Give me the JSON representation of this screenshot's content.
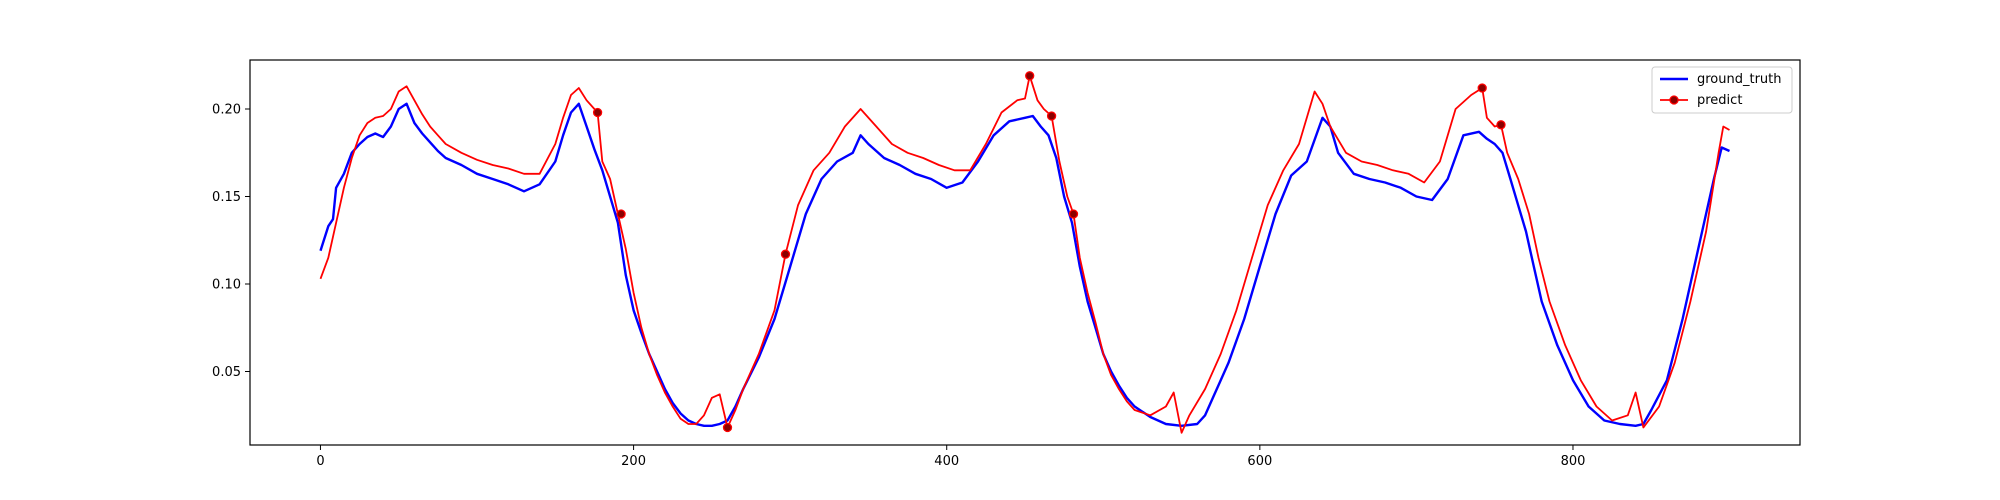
{
  "chart_data": {
    "type": "line",
    "title": "",
    "xlabel": "",
    "ylabel": "",
    "xlim": [
      -45,
      945
    ],
    "ylim": [
      0.008,
      0.228
    ],
    "grid": false,
    "legend_position": "top-right",
    "x_ticks": [
      0,
      200,
      400,
      600,
      800
    ],
    "x_tick_labels": [
      "0",
      "200",
      "400",
      "600",
      "800"
    ],
    "y_ticks": [
      0.05,
      0.1,
      0.15,
      0.2
    ],
    "y_tick_labels": [
      "0.05",
      "0.10",
      "0.15",
      "0.20"
    ],
    "series": [
      {
        "name": "ground_truth",
        "color": "#0000ff",
        "points": [
          [
            0,
            0.119
          ],
          [
            5,
            0.133
          ],
          [
            8,
            0.137
          ],
          [
            10,
            0.155
          ],
          [
            15,
            0.163
          ],
          [
            20,
            0.175
          ],
          [
            25,
            0.18
          ],
          [
            30,
            0.184
          ],
          [
            35,
            0.186
          ],
          [
            40,
            0.184
          ],
          [
            45,
            0.19
          ],
          [
            50,
            0.2
          ],
          [
            55,
            0.203
          ],
          [
            60,
            0.192
          ],
          [
            65,
            0.186
          ],
          [
            70,
            0.181
          ],
          [
            75,
            0.176
          ],
          [
            80,
            0.172
          ],
          [
            90,
            0.168
          ],
          [
            100,
            0.163
          ],
          [
            110,
            0.16
          ],
          [
            120,
            0.157
          ],
          [
            130,
            0.153
          ],
          [
            140,
            0.157
          ],
          [
            150,
            0.17
          ],
          [
            155,
            0.185
          ],
          [
            160,
            0.198
          ],
          [
            165,
            0.203
          ],
          [
            170,
            0.19
          ],
          [
            175,
            0.177
          ],
          [
            180,
            0.165
          ],
          [
            185,
            0.15
          ],
          [
            190,
            0.135
          ],
          [
            195,
            0.105
          ],
          [
            200,
            0.085
          ],
          [
            205,
            0.072
          ],
          [
            210,
            0.06
          ],
          [
            215,
            0.05
          ],
          [
            220,
            0.04
          ],
          [
            225,
            0.032
          ],
          [
            230,
            0.026
          ],
          [
            235,
            0.022
          ],
          [
            240,
            0.02
          ],
          [
            245,
            0.019
          ],
          [
            250,
            0.019
          ],
          [
            255,
            0.02
          ],
          [
            260,
            0.022
          ],
          [
            265,
            0.03
          ],
          [
            270,
            0.04
          ],
          [
            280,
            0.058
          ],
          [
            290,
            0.08
          ],
          [
            300,
            0.11
          ],
          [
            310,
            0.14
          ],
          [
            320,
            0.16
          ],
          [
            330,
            0.17
          ],
          [
            340,
            0.175
          ],
          [
            345,
            0.185
          ],
          [
            350,
            0.18
          ],
          [
            360,
            0.172
          ],
          [
            370,
            0.168
          ],
          [
            380,
            0.163
          ],
          [
            390,
            0.16
          ],
          [
            400,
            0.155
          ],
          [
            410,
            0.158
          ],
          [
            420,
            0.17
          ],
          [
            430,
            0.185
          ],
          [
            440,
            0.193
          ],
          [
            450,
            0.195
          ],
          [
            455,
            0.196
          ],
          [
            460,
            0.19
          ],
          [
            465,
            0.185
          ],
          [
            470,
            0.172
          ],
          [
            475,
            0.15
          ],
          [
            480,
            0.135
          ],
          [
            485,
            0.11
          ],
          [
            490,
            0.09
          ],
          [
            495,
            0.075
          ],
          [
            500,
            0.06
          ],
          [
            505,
            0.05
          ],
          [
            510,
            0.042
          ],
          [
            515,
            0.035
          ],
          [
            520,
            0.03
          ],
          [
            530,
            0.024
          ],
          [
            540,
            0.02
          ],
          [
            550,
            0.019
          ],
          [
            560,
            0.02
          ],
          [
            565,
            0.025
          ],
          [
            570,
            0.035
          ],
          [
            580,
            0.055
          ],
          [
            590,
            0.08
          ],
          [
            600,
            0.11
          ],
          [
            610,
            0.14
          ],
          [
            620,
            0.162
          ],
          [
            630,
            0.17
          ],
          [
            640,
            0.195
          ],
          [
            645,
            0.19
          ],
          [
            650,
            0.175
          ],
          [
            660,
            0.163
          ],
          [
            670,
            0.16
          ],
          [
            680,
            0.158
          ],
          [
            690,
            0.155
          ],
          [
            700,
            0.15
          ],
          [
            710,
            0.148
          ],
          [
            720,
            0.16
          ],
          [
            730,
            0.185
          ],
          [
            740,
            0.187
          ],
          [
            745,
            0.183
          ],
          [
            750,
            0.18
          ],
          [
            755,
            0.175
          ],
          [
            760,
            0.16
          ],
          [
            765,
            0.145
          ],
          [
            770,
            0.13
          ],
          [
            775,
            0.11
          ],
          [
            780,
            0.09
          ],
          [
            790,
            0.065
          ],
          [
            800,
            0.045
          ],
          [
            810,
            0.03
          ],
          [
            820,
            0.022
          ],
          [
            830,
            0.02
          ],
          [
            840,
            0.019
          ],
          [
            845,
            0.02
          ],
          [
            850,
            0.028
          ],
          [
            860,
            0.045
          ],
          [
            870,
            0.08
          ],
          [
            880,
            0.12
          ],
          [
            890,
            0.16
          ],
          [
            895,
            0.178
          ],
          [
            900,
            0.176
          ]
        ]
      },
      {
        "name": "predict",
        "color": "#ff0000",
        "points": [
          [
            0,
            0.103
          ],
          [
            5,
            0.115
          ],
          [
            10,
            0.135
          ],
          [
            15,
            0.155
          ],
          [
            20,
            0.172
          ],
          [
            25,
            0.185
          ],
          [
            30,
            0.192
          ],
          [
            35,
            0.195
          ],
          [
            40,
            0.196
          ],
          [
            45,
            0.2
          ],
          [
            50,
            0.21
          ],
          [
            55,
            0.213
          ],
          [
            60,
            0.205
          ],
          [
            65,
            0.197
          ],
          [
            70,
            0.19
          ],
          [
            75,
            0.185
          ],
          [
            80,
            0.18
          ],
          [
            90,
            0.175
          ],
          [
            100,
            0.171
          ],
          [
            110,
            0.168
          ],
          [
            120,
            0.166
          ],
          [
            130,
            0.163
          ],
          [
            140,
            0.163
          ],
          [
            150,
            0.18
          ],
          [
            155,
            0.195
          ],
          [
            160,
            0.208
          ],
          [
            165,
            0.212
          ],
          [
            170,
            0.205
          ],
          [
            175,
            0.2
          ],
          [
            177,
            0.198
          ],
          [
            180,
            0.17
          ],
          [
            185,
            0.16
          ],
          [
            190,
            0.14
          ],
          [
            195,
            0.12
          ],
          [
            200,
            0.095
          ],
          [
            205,
            0.075
          ],
          [
            210,
            0.06
          ],
          [
            215,
            0.048
          ],
          [
            220,
            0.038
          ],
          [
            225,
            0.03
          ],
          [
            230,
            0.023
          ],
          [
            235,
            0.02
          ],
          [
            240,
            0.02
          ],
          [
            245,
            0.025
          ],
          [
            250,
            0.035
          ],
          [
            255,
            0.037
          ],
          [
            260,
            0.018
          ],
          [
            265,
            0.028
          ],
          [
            270,
            0.04
          ],
          [
            280,
            0.06
          ],
          [
            290,
            0.085
          ],
          [
            297,
            0.117
          ],
          [
            305,
            0.145
          ],
          [
            315,
            0.165
          ],
          [
            325,
            0.175
          ],
          [
            335,
            0.19
          ],
          [
            345,
            0.2
          ],
          [
            355,
            0.19
          ],
          [
            365,
            0.18
          ],
          [
            375,
            0.175
          ],
          [
            385,
            0.172
          ],
          [
            395,
            0.168
          ],
          [
            405,
            0.165
          ],
          [
            415,
            0.165
          ],
          [
            425,
            0.18
          ],
          [
            435,
            0.198
          ],
          [
            445,
            0.205
          ],
          [
            450,
            0.206
          ],
          [
            453,
            0.219
          ],
          [
            458,
            0.205
          ],
          [
            462,
            0.2
          ],
          [
            467,
            0.196
          ],
          [
            472,
            0.17
          ],
          [
            477,
            0.15
          ],
          [
            481,
            0.14
          ],
          [
            485,
            0.115
          ],
          [
            490,
            0.095
          ],
          [
            495,
            0.078
          ],
          [
            500,
            0.06
          ],
          [
            505,
            0.048
          ],
          [
            510,
            0.04
          ],
          [
            515,
            0.033
          ],
          [
            520,
            0.028
          ],
          [
            530,
            0.025
          ],
          [
            540,
            0.03
          ],
          [
            545,
            0.038
          ],
          [
            550,
            0.015
          ],
          [
            555,
            0.025
          ],
          [
            565,
            0.04
          ],
          [
            575,
            0.06
          ],
          [
            585,
            0.085
          ],
          [
            595,
            0.115
          ],
          [
            605,
            0.145
          ],
          [
            615,
            0.165
          ],
          [
            625,
            0.18
          ],
          [
            635,
            0.21
          ],
          [
            640,
            0.203
          ],
          [
            645,
            0.19
          ],
          [
            655,
            0.175
          ],
          [
            665,
            0.17
          ],
          [
            675,
            0.168
          ],
          [
            685,
            0.165
          ],
          [
            695,
            0.163
          ],
          [
            705,
            0.158
          ],
          [
            715,
            0.17
          ],
          [
            725,
            0.2
          ],
          [
            735,
            0.208
          ],
          [
            742,
            0.212
          ],
          [
            745,
            0.195
          ],
          [
            750,
            0.19
          ],
          [
            754,
            0.191
          ],
          [
            758,
            0.175
          ],
          [
            765,
            0.16
          ],
          [
            772,
            0.14
          ],
          [
            778,
            0.115
          ],
          [
            785,
            0.09
          ],
          [
            795,
            0.065
          ],
          [
            805,
            0.045
          ],
          [
            815,
            0.03
          ],
          [
            825,
            0.022
          ],
          [
            835,
            0.025
          ],
          [
            840,
            0.038
          ],
          [
            845,
            0.018
          ],
          [
            855,
            0.03
          ],
          [
            865,
            0.055
          ],
          [
            875,
            0.09
          ],
          [
            885,
            0.13
          ],
          [
            893,
            0.175
          ],
          [
            896,
            0.19
          ],
          [
            900,
            0.188
          ]
        ],
        "markers": [
          [
            177,
            0.198
          ],
          [
            192,
            0.14
          ],
          [
            260,
            0.018
          ],
          [
            297,
            0.117
          ],
          [
            453,
            0.219
          ],
          [
            467,
            0.196
          ],
          [
            481,
            0.14
          ],
          [
            742,
            0.212
          ],
          [
            754,
            0.191
          ]
        ],
        "marker_color": "#8b0000"
      }
    ]
  }
}
